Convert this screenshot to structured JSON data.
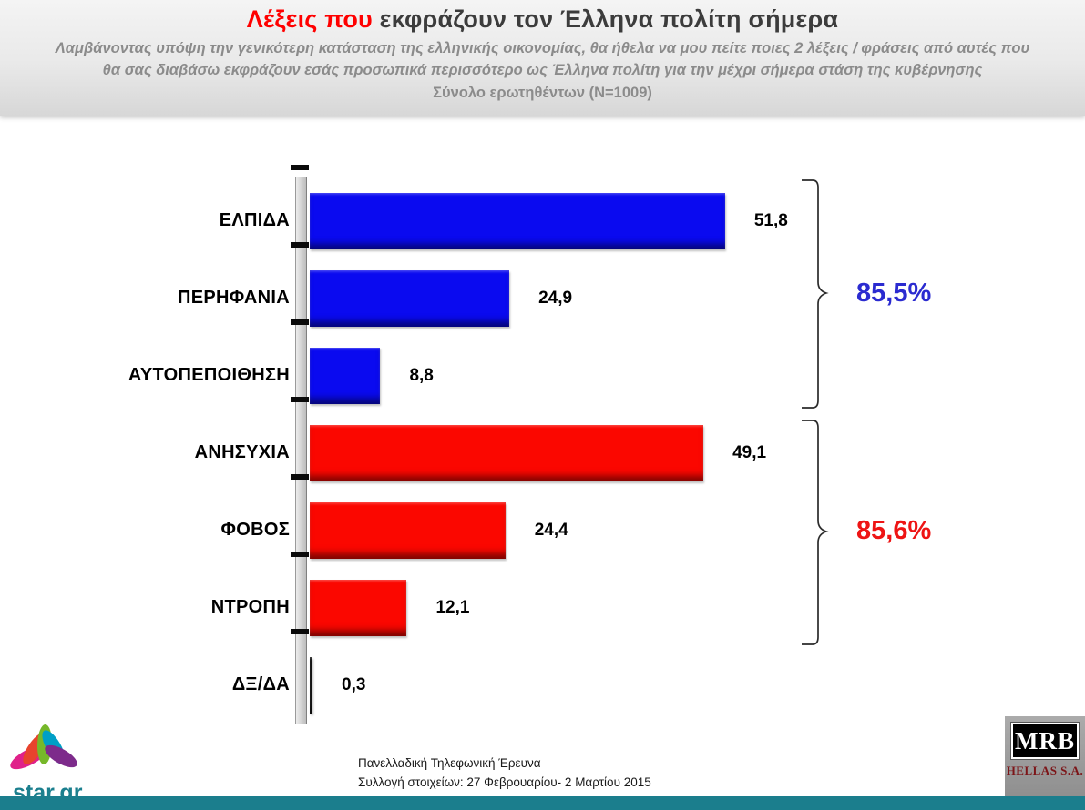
{
  "header": {
    "title_highlight": "Λέξεις που",
    "title_rest": " εκφράζουν τον Έλληνα πολίτη σήμερα",
    "subtitle_line1": "Λαμβάνοντας υπόψη την γενικότερη κατάσταση της ελληνικής οικονομίας, θα ήθελα να μου πείτε ποιες 2 λέξεις / φράσεις από αυτές που",
    "subtitle_line2": "θα σας διαβάσω εκφράζουν εσάς προσωπικά περισσότερο ως Έλληνα πολίτη για την μέχρι σήμερα στάση της κυβέρνησης",
    "sample_line": "Σύνολο ερωτηθέντων (N=1009)"
  },
  "chart_data": {
    "type": "bar",
    "orientation": "horizontal",
    "title": "Λέξεις που εκφράζουν τον Έλληνα πολίτη σήμερα",
    "xlabel": "",
    "ylabel": "",
    "xlim": [
      0,
      60
    ],
    "grid": false,
    "categories": [
      "ΕΛΠΙΔΑ",
      "ΠΕΡΗΦΑΝΙΑ",
      "ΑΥΤΟΠΕΠΟΙΘΗΣΗ",
      "ΑΝΗΣΥΧΙΑ",
      "ΦΟΒΟΣ",
      "ΝΤΡΟΠΗ",
      "ΔΞ/ΔΑ"
    ],
    "values": [
      51.8,
      24.9,
      8.8,
      49.1,
      24.4,
      12.1,
      0.3
    ],
    "value_labels": [
      "51,8",
      "24,9",
      "8,8",
      "49,1",
      "24,4",
      "12,1",
      "0,3"
    ],
    "bar_colors": [
      "#0a0af0",
      "#0a0af0",
      "#0a0af0",
      "#fb0700",
      "#fb0700",
      "#fb0700",
      "#0d0d0d"
    ],
    "groups": [
      {
        "label": "85,5%",
        "color": "#2b2bd0",
        "categories": [
          "ΕΛΠΙΔΑ",
          "ΠΕΡΗΦΑΝΙΑ",
          "ΑΥΤΟΠΕΠΟΙΘΗΣΗ"
        ]
      },
      {
        "label": "85,6%",
        "color": "#ee1414",
        "categories": [
          "ΑΝΗΣΥΧΙΑ",
          "ΦΟΒΟΣ",
          "ΝΤΡΟΠΗ"
        ]
      }
    ]
  },
  "footer": {
    "source_line1": "Πανελλαδική  Τηλεφωνική Έρευνα",
    "source_line2": "Συλλογή στοιχείων: 27 Φεβρουαρίου- 2 Μαρτίου  2015",
    "star_logo_text": "star.gr",
    "mrb_logo_title": "MRB",
    "mrb_logo_subtitle": "HELLAS S.A."
  },
  "colors": {
    "positive_blue": "#0a0af0",
    "negative_red": "#fb0700",
    "title_red": "#ff0000",
    "teal_footer": "#1b7e8d"
  }
}
